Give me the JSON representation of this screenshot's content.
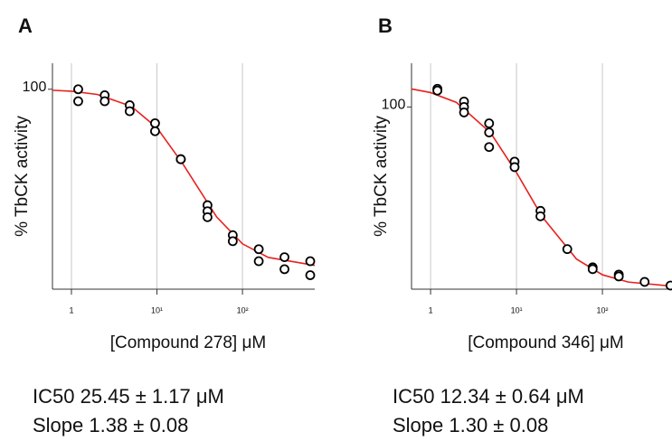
{
  "chart_data": [
    {
      "type": "scatter",
      "title": "A",
      "x_label": "[Compound 278] μM",
      "y_label": "% TbCK activity",
      "log_x": true,
      "grid": true,
      "xlim": [
        0.6,
        700
      ],
      "ylim": [
        0,
        113
      ],
      "xticks": [
        {
          "value": 1,
          "label": "1"
        },
        {
          "value": 10,
          "label": "10¹"
        },
        {
          "value": 100,
          "label": "10²"
        }
      ],
      "yticks": [
        100
      ],
      "points": {
        "color": "#000000",
        "x": [
          1.2,
          1.2,
          2.45,
          2.45,
          4.8,
          4.8,
          9.5,
          9.5,
          19,
          19,
          39,
          39,
          39,
          77,
          77,
          155,
          155,
          310,
          310,
          620,
          620
        ],
        "values": [
          100,
          94,
          97,
          94,
          92,
          89,
          83,
          79,
          65,
          65,
          42,
          39,
          36,
          27,
          24,
          20,
          14,
          16,
          10,
          14,
          7
        ]
      },
      "curve": {
        "color": "#e8211e",
        "x": [
          0.6,
          1,
          2,
          5,
          10,
          20,
          50,
          100,
          200,
          700
        ],
        "values": [
          99.5,
          99.0,
          97.4,
          91.5,
          80.7,
          62.8,
          36.1,
          22.7,
          15.9,
          11.9
        ]
      },
      "annotations": [
        "IC50 25.45 ± 1.17 μM",
        "Slope 1.38 ± 0.08"
      ]
    },
    {
      "type": "scatter",
      "title": "B",
      "x_label": "[Compound 346] μM",
      "y_label": "% TbCK activity",
      "log_x": true,
      "grid": true,
      "xlim": [
        0.6,
        630
      ],
      "ylim": [
        0,
        124
      ],
      "xticks": [
        {
          "value": 1,
          "label": "1"
        },
        {
          "value": 10,
          "label": "10¹"
        },
        {
          "value": 100,
          "label": "10²"
        }
      ],
      "yticks": [
        100
      ],
      "points": {
        "color": "#000000",
        "x": [
          1.2,
          1.2,
          2.45,
          2.45,
          2.45,
          4.8,
          4.8,
          4.8,
          9.5,
          9.5,
          19,
          19,
          39,
          77,
          77,
          155,
          155,
          310,
          620
        ],
        "values": [
          110,
          109,
          103,
          100,
          97,
          91,
          86,
          78,
          70,
          67,
          43,
          40,
          22,
          12,
          11,
          8,
          7,
          4,
          2
        ]
      },
      "curve": {
        "color": "#e8211e",
        "x": [
          0.6,
          1,
          2,
          5,
          10,
          20,
          50,
          100,
          200,
          630
        ],
        "values": [
          109.9,
          107.9,
          102.5,
          85.8,
          64.0,
          39.6,
          16.5,
          7.9,
          3.9,
          1.7
        ]
      },
      "annotations": [
        "IC50 12.34 ± 0.64 μM",
        "Slope 1.30 ± 0.08"
      ]
    }
  ]
}
